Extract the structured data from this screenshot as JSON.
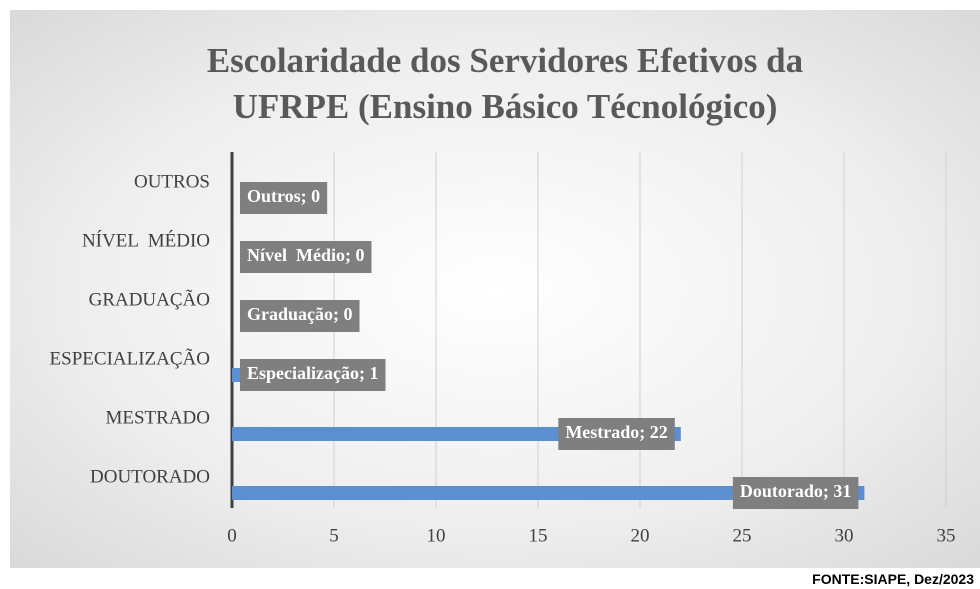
{
  "chart_data": {
    "type": "hbar",
    "title": "Escolaridade dos Servidores Efetivos da UFRPE (Ensino Básico Técnológico)",
    "categories": [
      "DOUTORADO",
      "MESTRADO",
      "ESPECIALIZAÇÃO",
      "GRADUAÇÃO",
      "NÍVEL  MÉDIO",
      "OUTROS"
    ],
    "values": [
      31,
      22,
      1,
      0,
      0,
      0
    ],
    "value_labels": [
      "Doutorado; 31",
      "Mestrado; 22",
      "Especialização; 1",
      "Graduação; 0",
      "Nível  Médio; 0",
      "Outros; 0"
    ],
    "color": "#5b8fd1",
    "xlim": [
      0,
      35
    ],
    "xticks": [
      0,
      5,
      10,
      15,
      20,
      25,
      30,
      35
    ],
    "grid": true,
    "source": "FONTE:SIAPE, Dez/2023"
  }
}
